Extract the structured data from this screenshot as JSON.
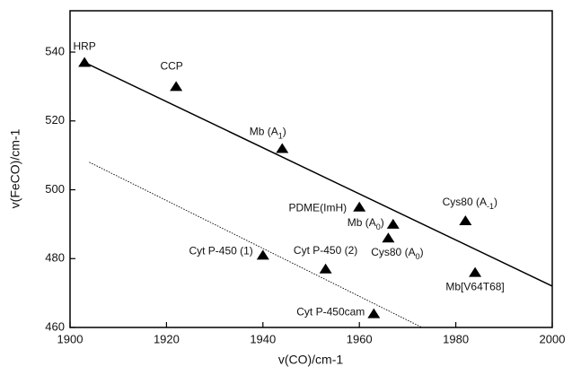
{
  "chart_data": {
    "type": "scatter",
    "x_label": "v(CO)/cm-1",
    "y_label": "v(FeCO)/cm-1",
    "xlim": [
      1900,
      2000
    ],
    "ylim": [
      460,
      552
    ],
    "xticks": [
      1900,
      1920,
      1940,
      1960,
      1980,
      2000
    ],
    "yticks": [
      460,
      480,
      500,
      520,
      540
    ],
    "color": "#000000",
    "points": [
      {
        "label": [
          "HRP"
        ],
        "x": 1903,
        "y": 537
      },
      {
        "label": [
          "CCP"
        ],
        "x": 1922,
        "y": 530
      },
      {
        "label": [
          "Mb (A",
          "1",
          ")"
        ],
        "x": 1944,
        "y": 512
      },
      {
        "label": [
          "PDME(ImH)"
        ],
        "x": 1960,
        "y": 495
      },
      {
        "label": [
          "Mb (A",
          "0",
          ")"
        ],
        "x": 1967,
        "y": 490
      },
      {
        "label": [
          "Cys80 (A",
          "0",
          ")"
        ],
        "x": 1966,
        "y": 486
      },
      {
        "label": [
          "Cys80 (A",
          "-1",
          ")"
        ],
        "x": 1982,
        "y": 491
      },
      {
        "label": [
          "Mb[V64T68]"
        ],
        "x": 1984,
        "y": 476
      },
      {
        "label": [
          "Cyt P-450 (1)"
        ],
        "x": 1940,
        "y": 481
      },
      {
        "label": [
          "Cyt P-450 (2)"
        ],
        "x": 1953,
        "y": 477
      },
      {
        "label": [
          "Cyt P-450cam"
        ],
        "x": 1963,
        "y": 464
      }
    ],
    "lines": [
      {
        "x": [
          1903,
          2000
        ],
        "y": [
          537,
          472
        ],
        "style": "solid"
      },
      {
        "x": [
          1904,
          1973
        ],
        "y": [
          508,
          460
        ],
        "style": "dotted"
      }
    ]
  }
}
